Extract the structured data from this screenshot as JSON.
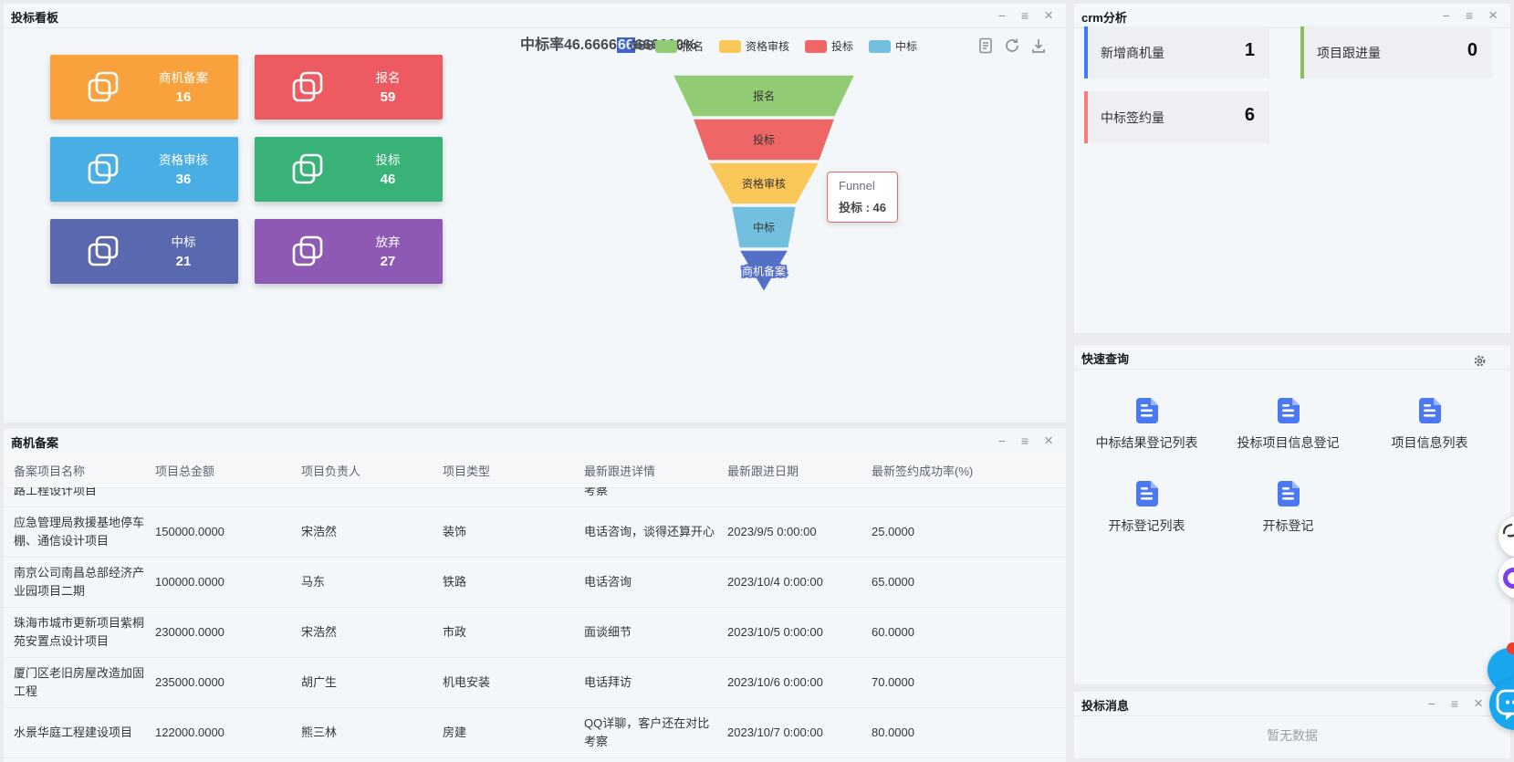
{
  "bid_board": {
    "title": "投标看板",
    "window_controls": [
      "minimize-icon",
      "menu-icon",
      "close-icon"
    ],
    "toolbar_icons": [
      "document-icon",
      "refresh-icon",
      "download-icon"
    ],
    "stats": [
      {
        "label": "商机备案",
        "value": "16",
        "color": "#f9a13c"
      },
      {
        "label": "报名",
        "value": "59",
        "color": "#ee5a62"
      },
      {
        "label": "资格审核",
        "value": "36",
        "color": "#49aee4"
      },
      {
        "label": "投标",
        "value": "46",
        "color": "#38b277"
      },
      {
        "label": "中标",
        "value": "21",
        "color": "#5a68af"
      },
      {
        "label": "放弃",
        "value": "27",
        "color": "#8e58b5"
      }
    ],
    "funnel_title": {
      "display": "中标率46.666666666666600%",
      "prefix": "中标率46.6666",
      "highlight": "66",
      "suffix": "666600%",
      "ghost": "66600%"
    },
    "legend": [
      {
        "label": "报名",
        "color": "#91cc75"
      },
      {
        "label": "资格审核",
        "color": "#fac858"
      },
      {
        "label": "投标",
        "color": "#ee6666"
      },
      {
        "label": "中标",
        "color": "#73c0de"
      }
    ],
    "tooltip": {
      "series": "Funnel",
      "name": "投标",
      "value": "46",
      "line2": "投标 : 46"
    }
  },
  "chart_data": {
    "type": "funnel",
    "title": "中标率46.666666666666600%",
    "series_name": "Funnel",
    "categories": [
      "报名",
      "投标",
      "资格审核",
      "中标",
      "商机备案"
    ],
    "values": [
      59,
      46,
      36,
      21,
      16
    ],
    "colors": [
      "#91cc75",
      "#ee6666",
      "#fac858",
      "#73c0de",
      "#5470c6"
    ],
    "label_colors": [
      "#333333",
      "#333333",
      "#333333",
      "#333333",
      "#ffffff"
    ],
    "legend": [
      "报名",
      "资格审核",
      "投标",
      "中标"
    ],
    "legend_position": "top",
    "sort": "descending"
  },
  "registry": {
    "title": "商机备案",
    "window_controls": [
      "minimize-icon",
      "menu-icon",
      "close-icon"
    ],
    "columns": [
      "备案项目名称",
      "项目总金额",
      "项目负责人",
      "项目类型",
      "最新跟进详情",
      "最新跟进日期",
      "最新签约成功率(%)"
    ],
    "partial_row": {
      "name": "路工程设计项目",
      "detail": "考察"
    },
    "rows": [
      [
        "应急管理局救援基地停车棚、通信设计项目",
        "150000.0000",
        "宋浩然",
        "装饰",
        "电话咨询，谈得还算开心",
        "2023/9/5 0:00:00",
        "25.0000"
      ],
      [
        "南京公司南昌总部经济产业园项目二期",
        "100000.0000",
        "马东",
        "铁路",
        "电话咨询",
        "2023/10/4 0:00:00",
        "65.0000"
      ],
      [
        "珠海市城市更新项目紫桐苑安置点设计项目",
        "230000.0000",
        "宋浩然",
        "市政",
        "面谈细节",
        "2023/10/5 0:00:00",
        "60.0000"
      ],
      [
        "厦门区老旧房屋改造加固工程",
        "235000.0000",
        "胡广生",
        "机电安装",
        "电话拜访",
        "2023/10/6 0:00:00",
        "70.0000"
      ],
      [
        "水景华庭工程建设项目",
        "122000.0000",
        "熊三林",
        "房建",
        "QQ详聊，客户还在对比考察",
        "2023/10/7 0:00:00",
        "80.0000"
      ]
    ]
  },
  "crm": {
    "title": "crm分析",
    "window_controls": [
      "minimize-icon",
      "menu-icon",
      "close-icon"
    ],
    "cards": [
      {
        "label": "新增商机量",
        "value": "1",
        "accent": "#3a7bfd"
      },
      {
        "label": "项目跟进量",
        "value": "0",
        "accent": "#8cc152"
      },
      {
        "label": "中标签约量",
        "value": "6",
        "accent": "#fb7b7b"
      }
    ]
  },
  "quick": {
    "title": "快速查询",
    "settings_icon": "gear-icon",
    "item_icon": "blue-document-icon",
    "items": [
      "中标结果登记列表",
      "投标项目信息登记",
      "项目信息列表",
      "开标登记列表",
      "开标登记"
    ]
  },
  "messages": {
    "title": "投标消息",
    "window_controls": [
      "minimize-icon",
      "menu-icon",
      "close-icon"
    ],
    "empty_text": "暂无数据"
  },
  "floating": {
    "icons": [
      "assistant-icon",
      "brand-ring-icon",
      "notification-icon",
      "chat-icon"
    ],
    "chat_color": "#18a7ee",
    "badge_color": "#f5392c",
    "ring_color": "#7b3ff2"
  }
}
